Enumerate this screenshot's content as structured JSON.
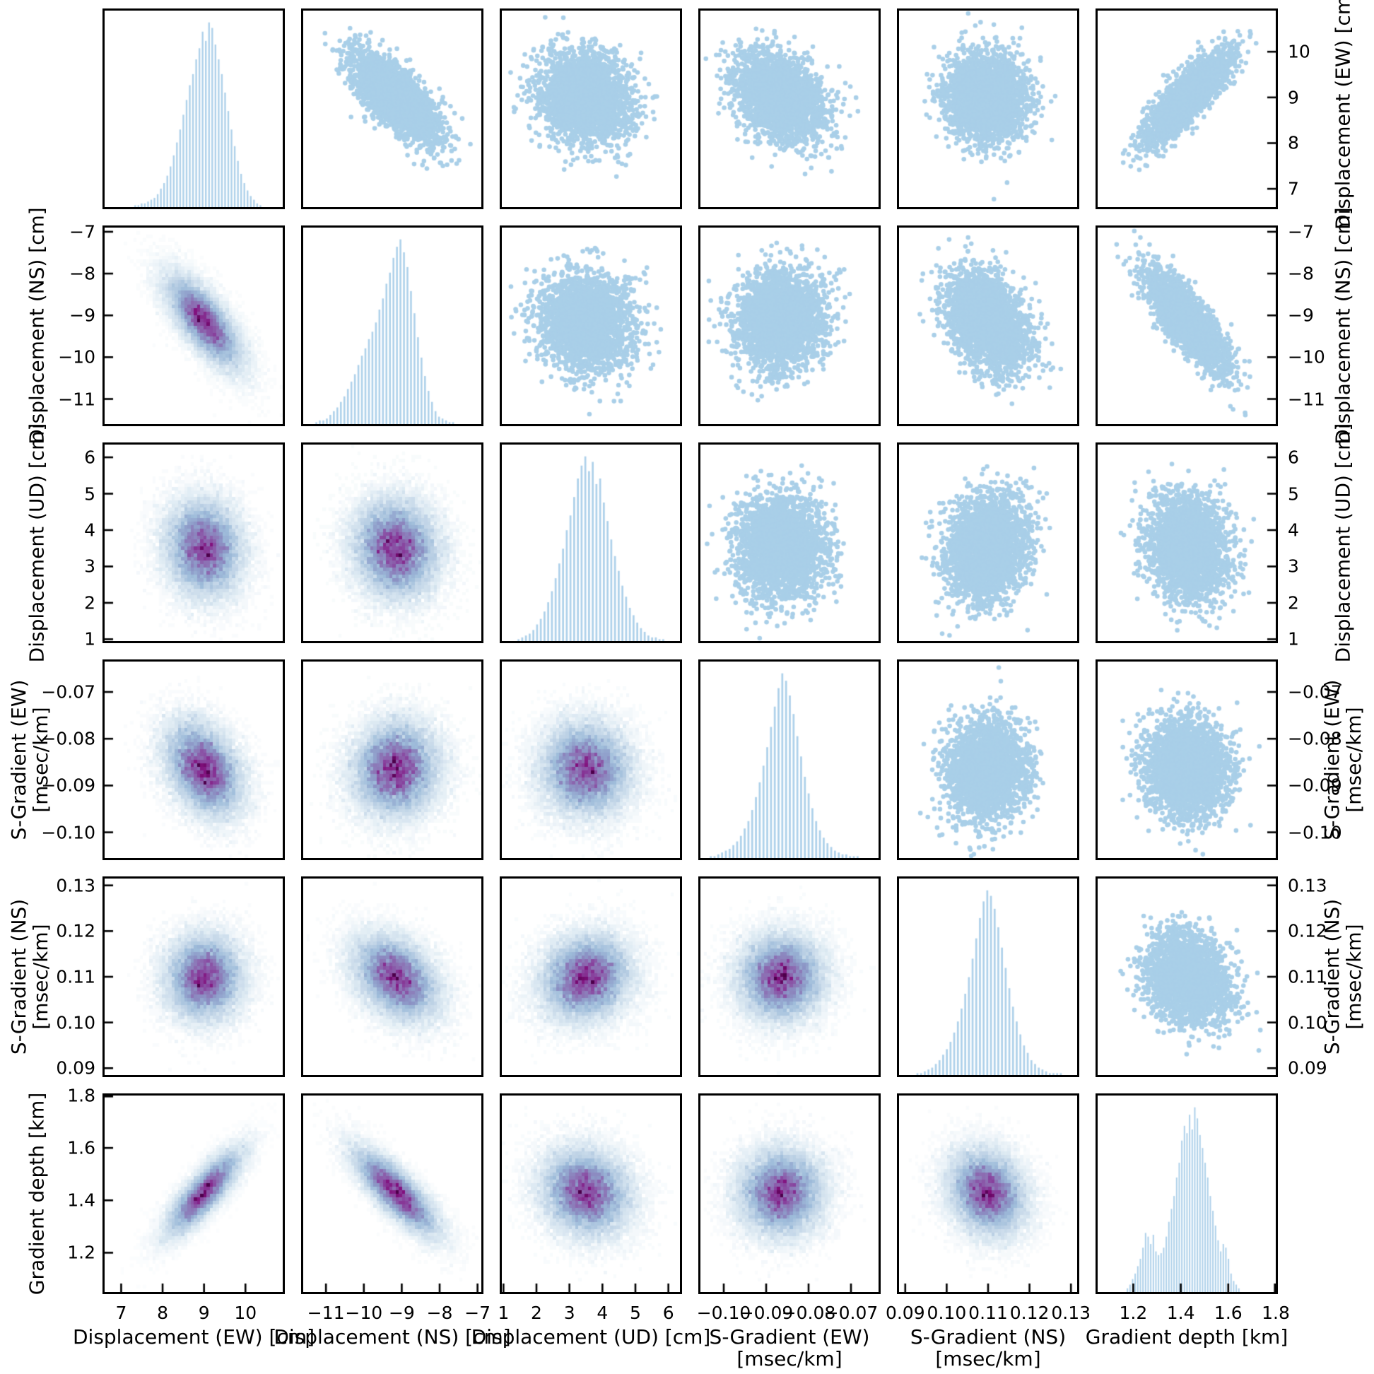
{
  "chart_data": {
    "type": "scatter-matrix",
    "layout_hint": {
      "rows": 6,
      "cols": 6,
      "diagonal": "histogram",
      "upper_triangle": "scatter",
      "lower_triangle": "2d-density-histogram",
      "grid": "off",
      "frame": "all-four-spines",
      "tick_direction": "in"
    },
    "colors": {
      "background": "#ffffff",
      "frame": "#000000",
      "scatter_point": "#a9cfe8",
      "histogram_bar": "#aed1ea",
      "density_colormap": [
        "#ffffff",
        "#e0ecf4",
        "#bfd3e6",
        "#9ebcda",
        "#8c96c6",
        "#8c6bb1",
        "#88419d",
        "#810f7c",
        "#4d004b"
      ],
      "density_colormap_stops": [
        0,
        0.13,
        0.3,
        0.45,
        0.6,
        0.75,
        0.87,
        0.95,
        1
      ]
    },
    "variables": [
      {
        "id": "disp_ew",
        "label_lines": [
          "Displacement (EW) [cm]"
        ],
        "axis_min": 6.6,
        "axis_max": 10.9,
        "ticks": [
          7,
          8,
          9,
          10
        ],
        "tick_labels": [
          "7",
          "8",
          "9",
          "10"
        ],
        "mean": 9.0,
        "sd": 0.48,
        "hist_data_min": 7.3,
        "hist_data_max": 10.4,
        "hist_bins": [
          0.01,
          0.01,
          0.02,
          0.02,
          0.03,
          0.04,
          0.05,
          0.07,
          0.1,
          0.13,
          0.17,
          0.22,
          0.28,
          0.35,
          0.42,
          0.5,
          0.58,
          0.66,
          0.72,
          0.8,
          0.86,
          0.95,
          0.9,
          1.0,
          0.97,
          0.88,
          0.8,
          0.72,
          0.62,
          0.52,
          0.42,
          0.33,
          0.25,
          0.18,
          0.13,
          0.09,
          0.06,
          0.04,
          0.02,
          0.01
        ]
      },
      {
        "id": "disp_ns",
        "label_lines": [
          "Displacement (NS) [cm]"
        ],
        "axis_min": -11.6,
        "axis_max": -6.9,
        "ticks": [
          -11,
          -10,
          -9,
          -8,
          -7
        ],
        "tick_labels": [
          "−11",
          "−10",
          "−9",
          "−8",
          "−7"
        ],
        "mean": -9.15,
        "sd": 0.58,
        "hist_data_min": -11.3,
        "hist_data_max": -7.6,
        "hist_bins": [
          0.01,
          0.02,
          0.02,
          0.03,
          0.05,
          0.07,
          0.09,
          0.12,
          0.15,
          0.19,
          0.23,
          0.27,
          0.32,
          0.37,
          0.41,
          0.46,
          0.5,
          0.55,
          0.62,
          0.68,
          0.76,
          0.82,
          0.9,
          0.96,
          1.0,
          0.93,
          0.85,
          0.72,
          0.6,
          0.47,
          0.36,
          0.26,
          0.18,
          0.12,
          0.07,
          0.04,
          0.03,
          0.02,
          0.01,
          0.01
        ]
      },
      {
        "id": "disp_ud",
        "label_lines": [
          "Displacement (UD) [cm]"
        ],
        "axis_min": 0.95,
        "axis_max": 6.35,
        "ticks": [
          1,
          2,
          3,
          4,
          5,
          6
        ],
        "tick_labels": [
          "1",
          "2",
          "3",
          "4",
          "5",
          "6"
        ],
        "mean": 3.5,
        "sd": 0.7,
        "hist_data_min": 1.4,
        "hist_data_max": 5.9,
        "hist_bins": [
          0.01,
          0.02,
          0.03,
          0.04,
          0.06,
          0.09,
          0.12,
          0.16,
          0.21,
          0.27,
          0.34,
          0.42,
          0.5,
          0.6,
          0.68,
          0.78,
          0.88,
          0.95,
          1.0,
          0.92,
          0.97,
          0.85,
          0.88,
          0.75,
          0.65,
          0.55,
          0.46,
          0.38,
          0.3,
          0.24,
          0.18,
          0.14,
          0.1,
          0.07,
          0.05,
          0.03,
          0.02,
          0.02,
          0.01,
          0.01
        ]
      },
      {
        "id": "sgrad_ew",
        "label_lines": [
          "S-Gradient (EW)",
          "[msec/km]"
        ],
        "axis_min": -0.1055,
        "axis_max": -0.0635,
        "ticks": [
          -0.1,
          -0.09,
          -0.08,
          -0.07
        ],
        "tick_labels": [
          "−0.10",
          "−0.09",
          "−0.08",
          "−0.07"
        ],
        "mean": -0.0865,
        "sd": 0.0052,
        "hist_data_min": -0.1035,
        "hist_data_max": -0.068,
        "hist_bins": [
          0.01,
          0.01,
          0.02,
          0.03,
          0.04,
          0.05,
          0.07,
          0.09,
          0.12,
          0.16,
          0.2,
          0.26,
          0.33,
          0.41,
          0.5,
          0.6,
          0.71,
          0.82,
          0.92,
          1.0,
          0.96,
          0.88,
          0.78,
          0.66,
          0.55,
          0.44,
          0.35,
          0.27,
          0.2,
          0.15,
          0.11,
          0.08,
          0.06,
          0.04,
          0.03,
          0.02,
          0.02,
          0.01,
          0.01,
          0.01
        ]
      },
      {
        "id": "sgrad_ns",
        "label_lines": [
          "S-Gradient (NS)",
          "[msec/km]"
        ],
        "axis_min": 0.0885,
        "axis_max": 0.1315,
        "ticks": [
          0.09,
          0.1,
          0.11,
          0.12,
          0.13
        ],
        "tick_labels": [
          "0.09",
          "0.10",
          "0.11",
          "0.12",
          "0.13"
        ],
        "mean": 0.1098,
        "sd": 0.0048,
        "hist_data_min": 0.0925,
        "hist_data_max": 0.128,
        "hist_bins": [
          0.01,
          0.01,
          0.02,
          0.03,
          0.04,
          0.06,
          0.08,
          0.11,
          0.14,
          0.18,
          0.23,
          0.29,
          0.36,
          0.44,
          0.53,
          0.63,
          0.74,
          0.85,
          0.94,
          1.0,
          0.97,
          0.9,
          0.8,
          0.69,
          0.58,
          0.47,
          0.37,
          0.29,
          0.22,
          0.16,
          0.12,
          0.08,
          0.06,
          0.04,
          0.03,
          0.02,
          0.01,
          0.01,
          0.01,
          0.01
        ]
      },
      {
        "id": "grad_depth",
        "label_lines": [
          "Gradient depth [km]"
        ],
        "axis_min": 1.05,
        "axis_max": 1.8,
        "ticks": [
          1.2,
          1.4,
          1.6,
          1.8
        ],
        "tick_labels": [
          "1.2",
          "1.4",
          "1.6",
          "1.8"
        ],
        "mean": 1.43,
        "sd": 0.085,
        "hist_data_min": 1.17,
        "hist_data_max": 1.65,
        "hist_bins": [
          0.02,
          0.04,
          0.07,
          0.1,
          0.14,
          0.18,
          0.24,
          0.32,
          0.3,
          0.26,
          0.31,
          0.22,
          0.2,
          0.21,
          0.24,
          0.3,
          0.38,
          0.45,
          0.52,
          0.62,
          0.7,
          0.82,
          0.9,
          0.86,
          0.96,
          0.88,
          1.0,
          0.94,
          0.85,
          0.78,
          0.7,
          0.62,
          0.52,
          0.44,
          0.36,
          0.28,
          0.22,
          0.26,
          0.24,
          0.18,
          0.1,
          0.06,
          0.04,
          0.02
        ]
      }
    ],
    "correlation_matrix": [
      [
        1.0,
        -0.72,
        -0.08,
        -0.33,
        0.02,
        0.82
      ],
      [
        -0.72,
        1.0,
        -0.08,
        0.05,
        -0.35,
        -0.8
      ],
      [
        -0.08,
        -0.08,
        1.0,
        -0.03,
        0.12,
        -0.12
      ],
      [
        -0.33,
        0.05,
        -0.03,
        1.0,
        0.03,
        0.02
      ],
      [
        0.02,
        -0.35,
        0.12,
        0.03,
        1.0,
        -0.18
      ],
      [
        0.82,
        -0.8,
        -0.12,
        0.02,
        -0.18,
        1.0
      ]
    ],
    "axis_label_sides": {
      "bottom_labels": [
        0,
        1,
        2,
        3,
        4,
        5
      ],
      "left_labels": [
        1,
        2,
        3,
        4,
        5
      ],
      "right_labels": [
        0,
        1,
        2,
        3,
        4
      ]
    }
  }
}
